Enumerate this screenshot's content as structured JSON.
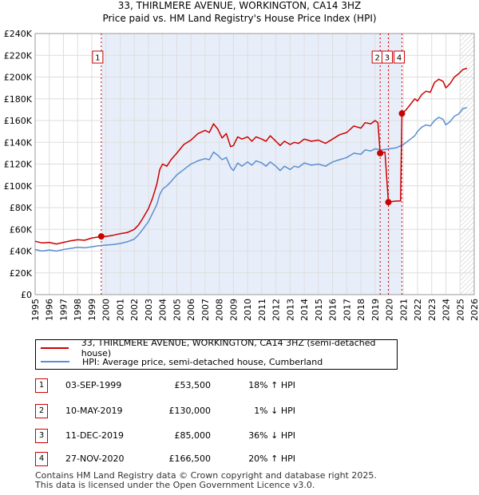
{
  "header": {
    "title_line1": "33, THIRLMERE AVENUE, WORKINGTON, CA14 3HZ",
    "title_line2": "Price paid vs. HM Land Registry's House Price Index (HPI)"
  },
  "chart_data": {
    "type": "line",
    "title": "33, THIRLMERE AVENUE, WORKINGTON, CA14 3HZ",
    "subtitle": "Price paid vs. HM Land Registry's House Price Index (HPI)",
    "xlabel": "",
    "ylabel": "",
    "xlim": [
      1995,
      2026
    ],
    "ylim": [
      0,
      240000
    ],
    "x_ticks": [
      1995,
      1996,
      1997,
      1998,
      1999,
      2000,
      2001,
      2002,
      2003,
      2004,
      2005,
      2006,
      2007,
      2008,
      2009,
      2010,
      2011,
      2012,
      2013,
      2014,
      2015,
      2016,
      2017,
      2018,
      2019,
      2020,
      2021,
      2022,
      2023,
      2024,
      2025,
      2026
    ],
    "y_ticks": [
      {
        "value": 0,
        "label": "£0"
      },
      {
        "value": 20000,
        "label": "£20K"
      },
      {
        "value": 40000,
        "label": "£40K"
      },
      {
        "value": 60000,
        "label": "£60K"
      },
      {
        "value": 80000,
        "label": "£80K"
      },
      {
        "value": 100000,
        "label": "£100K"
      },
      {
        "value": 120000,
        "label": "£120K"
      },
      {
        "value": 140000,
        "label": "£140K"
      },
      {
        "value": 160000,
        "label": "£160K"
      },
      {
        "value": 180000,
        "label": "£180K"
      },
      {
        "value": 200000,
        "label": "£200K"
      },
      {
        "value": 220000,
        "label": "£220K"
      },
      {
        "value": 240000,
        "label": "£240K"
      }
    ],
    "grid": true,
    "shaded_range": [
      1999.67,
      2020.9
    ],
    "series": [
      {
        "name": "33, THIRLMERE AVENUE, WORKINGTON, CA14 3HZ (semi-detached house)",
        "color": "#cc0000",
        "points": [
          [
            1995.0,
            49000
          ],
          [
            1995.5,
            47500
          ],
          [
            1996.0,
            48000
          ],
          [
            1996.5,
            46500
          ],
          [
            1997.0,
            48000
          ],
          [
            1997.5,
            49500
          ],
          [
            1998.0,
            50500
          ],
          [
            1998.5,
            50000
          ],
          [
            1999.0,
            52000
          ],
          [
            1999.5,
            53000
          ],
          [
            1999.67,
            53500
          ],
          [
            2000.0,
            53500
          ],
          [
            2000.5,
            54500
          ],
          [
            2001.0,
            56000
          ],
          [
            2001.5,
            57000
          ],
          [
            2002.0,
            60000
          ],
          [
            2002.3,
            64000
          ],
          [
            2002.6,
            70000
          ],
          [
            2003.0,
            79000
          ],
          [
            2003.3,
            89000
          ],
          [
            2003.6,
            102000
          ],
          [
            2003.8,
            115000
          ],
          [
            2004.0,
            120000
          ],
          [
            2004.3,
            118000
          ],
          [
            2004.6,
            124000
          ],
          [
            2005.0,
            130000
          ],
          [
            2005.5,
            138000
          ],
          [
            2006.0,
            142000
          ],
          [
            2006.5,
            148000
          ],
          [
            2007.0,
            151000
          ],
          [
            2007.3,
            149000
          ],
          [
            2007.6,
            157000
          ],
          [
            2007.9,
            152000
          ],
          [
            2008.2,
            144000
          ],
          [
            2008.5,
            148000
          ],
          [
            2008.8,
            136000
          ],
          [
            2009.0,
            137000
          ],
          [
            2009.3,
            145000
          ],
          [
            2009.6,
            143000
          ],
          [
            2010.0,
            145000
          ],
          [
            2010.3,
            141000
          ],
          [
            2010.6,
            145000
          ],
          [
            2011.0,
            143000
          ],
          [
            2011.3,
            141000
          ],
          [
            2011.6,
            146000
          ],
          [
            2012.0,
            141000
          ],
          [
            2012.3,
            137000
          ],
          [
            2012.6,
            141000
          ],
          [
            2013.0,
            138000
          ],
          [
            2013.3,
            140000
          ],
          [
            2013.6,
            139000
          ],
          [
            2014.0,
            143000
          ],
          [
            2014.5,
            141000
          ],
          [
            2015.0,
            142000
          ],
          [
            2015.5,
            139000
          ],
          [
            2016.0,
            143000
          ],
          [
            2016.5,
            147000
          ],
          [
            2017.0,
            149000
          ],
          [
            2017.5,
            155000
          ],
          [
            2018.0,
            153000
          ],
          [
            2018.3,
            158000
          ],
          [
            2018.7,
            157000
          ],
          [
            2019.0,
            160000
          ],
          [
            2019.2,
            158000
          ],
          [
            2019.36,
            130000
          ],
          [
            2019.5,
            130500
          ],
          [
            2019.7,
            131000
          ],
          [
            2019.94,
            85000
          ],
          [
            2020.2,
            85500
          ],
          [
            2020.5,
            86000
          ],
          [
            2020.8,
            86000
          ],
          [
            2020.9,
            166500
          ],
          [
            2021.2,
            170000
          ],
          [
            2021.5,
            175000
          ],
          [
            2021.8,
            180000
          ],
          [
            2022.0,
            178000
          ],
          [
            2022.3,
            184000
          ],
          [
            2022.6,
            187000
          ],
          [
            2022.9,
            186000
          ],
          [
            2023.2,
            195000
          ],
          [
            2023.5,
            198000
          ],
          [
            2023.8,
            196000
          ],
          [
            2024.0,
            190000
          ],
          [
            2024.3,
            194000
          ],
          [
            2024.6,
            200000
          ],
          [
            2024.9,
            203000
          ],
          [
            2025.2,
            207000
          ],
          [
            2025.5,
            208000
          ]
        ]
      },
      {
        "name": "HPI: Average price, semi-detached house, Cumberland",
        "color": "#5b8fd0",
        "points": [
          [
            1995.0,
            41500
          ],
          [
            1995.5,
            40000
          ],
          [
            1996.0,
            41000
          ],
          [
            1996.5,
            40000
          ],
          [
            1997.0,
            41500
          ],
          [
            1997.5,
            42500
          ],
          [
            1998.0,
            43500
          ],
          [
            1998.5,
            43000
          ],
          [
            1999.0,
            44000
          ],
          [
            1999.5,
            45000
          ],
          [
            2000.0,
            45500
          ],
          [
            2000.5,
            46000
          ],
          [
            2001.0,
            47000
          ],
          [
            2001.5,
            48500
          ],
          [
            2002.0,
            51000
          ],
          [
            2002.3,
            55000
          ],
          [
            2002.6,
            60000
          ],
          [
            2003.0,
            67000
          ],
          [
            2003.3,
            75000
          ],
          [
            2003.6,
            83000
          ],
          [
            2003.8,
            92000
          ],
          [
            2004.0,
            97000
          ],
          [
            2004.3,
            100000
          ],
          [
            2004.6,
            104000
          ],
          [
            2005.0,
            110000
          ],
          [
            2005.5,
            115000
          ],
          [
            2006.0,
            120000
          ],
          [
            2006.5,
            123000
          ],
          [
            2007.0,
            125000
          ],
          [
            2007.3,
            124000
          ],
          [
            2007.6,
            131000
          ],
          [
            2007.9,
            128000
          ],
          [
            2008.2,
            124000
          ],
          [
            2008.5,
            126000
          ],
          [
            2008.8,
            117000
          ],
          [
            2009.0,
            114000
          ],
          [
            2009.3,
            121000
          ],
          [
            2009.6,
            118000
          ],
          [
            2010.0,
            122000
          ],
          [
            2010.3,
            119000
          ],
          [
            2010.6,
            123000
          ],
          [
            2011.0,
            121000
          ],
          [
            2011.3,
            118000
          ],
          [
            2011.6,
            122000
          ],
          [
            2012.0,
            118000
          ],
          [
            2012.3,
            114000
          ],
          [
            2012.6,
            118000
          ],
          [
            2013.0,
            115000
          ],
          [
            2013.3,
            118000
          ],
          [
            2013.6,
            117000
          ],
          [
            2014.0,
            121000
          ],
          [
            2014.5,
            119000
          ],
          [
            2015.0,
            120000
          ],
          [
            2015.5,
            118000
          ],
          [
            2016.0,
            122000
          ],
          [
            2016.5,
            124000
          ],
          [
            2017.0,
            126000
          ],
          [
            2017.5,
            130000
          ],
          [
            2018.0,
            129000
          ],
          [
            2018.3,
            133000
          ],
          [
            2018.7,
            132000
          ],
          [
            2019.0,
            134000
          ],
          [
            2019.5,
            133000
          ],
          [
            2020.0,
            134000
          ],
          [
            2020.5,
            135000
          ],
          [
            2021.0,
            138000
          ],
          [
            2021.5,
            143000
          ],
          [
            2021.8,
            146000
          ],
          [
            2022.0,
            150000
          ],
          [
            2022.3,
            154000
          ],
          [
            2022.6,
            156000
          ],
          [
            2022.9,
            155000
          ],
          [
            2023.2,
            160000
          ],
          [
            2023.5,
            163000
          ],
          [
            2023.8,
            161000
          ],
          [
            2024.0,
            156000
          ],
          [
            2024.3,
            159000
          ],
          [
            2024.6,
            164000
          ],
          [
            2024.9,
            166000
          ],
          [
            2025.2,
            171000
          ],
          [
            2025.5,
            172000
          ]
        ]
      }
    ],
    "sales": [
      {
        "id": "1",
        "x": 1999.67,
        "y": 53500
      },
      {
        "id": "2",
        "x": 2019.36,
        "y": 130000
      },
      {
        "id": "3",
        "x": 2019.94,
        "y": 85000
      },
      {
        "id": "4",
        "x": 2020.9,
        "y": 166500
      }
    ]
  },
  "legend": {
    "property_label": "33, THIRLMERE AVENUE, WORKINGTON, CA14 3HZ (semi-detached house)",
    "property_color": "#cc0000",
    "hpi_label": "HPI: Average price, semi-detached house, Cumberland",
    "hpi_color": "#5b8fd0"
  },
  "transactions": [
    {
      "id": "1",
      "date": "03-SEP-1999",
      "price": "£53,500",
      "hpi": "18% ↑ HPI"
    },
    {
      "id": "2",
      "date": "10-MAY-2019",
      "price": "£130,000",
      "hpi": "1% ↓ HPI"
    },
    {
      "id": "3",
      "date": "11-DEC-2019",
      "price": "£85,000",
      "hpi": "36% ↓ HPI"
    },
    {
      "id": "4",
      "date": "27-NOV-2020",
      "price": "£166,500",
      "hpi": "20% ↑ HPI"
    }
  ],
  "footer": {
    "line1": "Contains HM Land Registry data © Crown copyright and database right 2025.",
    "line2": "This data is licensed under the Open Government Licence v3.0."
  }
}
